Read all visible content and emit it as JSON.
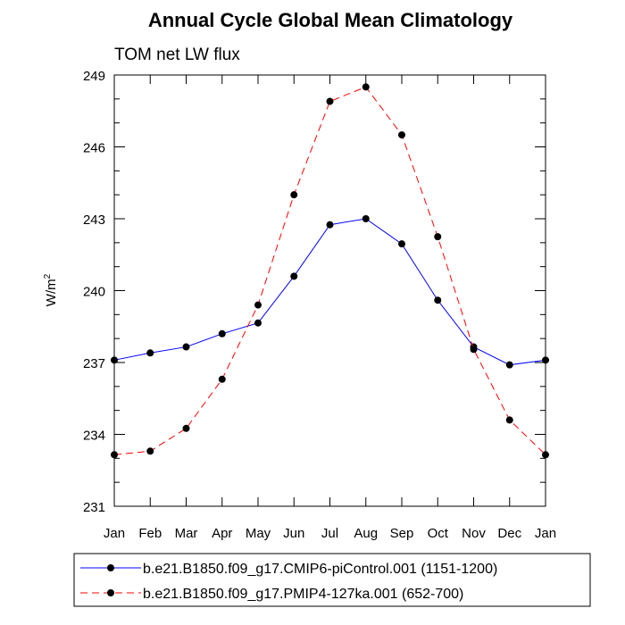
{
  "chart_data": {
    "type": "line",
    "title": "Annual Cycle Global Mean Climatology",
    "subtitle": "TOM net LW flux",
    "ylabel": "W/m",
    "ylabel_superscript": "2",
    "xlabel": "",
    "categories": [
      "Jan",
      "Feb",
      "Mar",
      "Apr",
      "May",
      "Jun",
      "Jul",
      "Aug",
      "Sep",
      "Oct",
      "Nov",
      "Dec",
      "Jan"
    ],
    "ylim": [
      231,
      249
    ],
    "yticks": [
      231,
      234,
      237,
      240,
      243,
      246,
      249
    ],
    "series": [
      {
        "name": "b.e21.B1850.f09_g17.CMIP6-piControl.001 (1151-1200)",
        "color": "#0000ff",
        "dash": "solid",
        "values": [
          237.1,
          237.4,
          237.65,
          238.2,
          238.65,
          240.6,
          242.75,
          243.0,
          241.95,
          239.6,
          237.65,
          236.9,
          237.1
        ]
      },
      {
        "name": "b.e21.B1850.f09_g17.PMIP4-127ka.001 (652-700)",
        "color": "#ff0000",
        "dash": "dashed",
        "values": [
          233.15,
          233.3,
          234.25,
          236.3,
          239.4,
          244.0,
          247.9,
          248.5,
          246.5,
          242.25,
          237.55,
          234.6,
          233.15
        ]
      }
    ]
  }
}
